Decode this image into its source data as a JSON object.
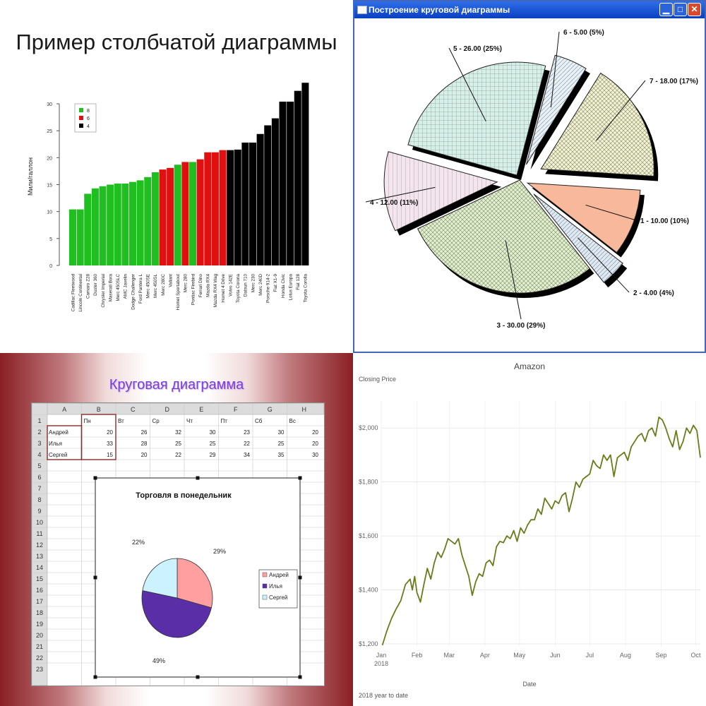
{
  "panels": {
    "bar": {
      "title": "Пример столбчатой диаграммы"
    },
    "pie_window": {
      "window_title": "Построение круговой диаграммы"
    },
    "excel": {
      "slide_title": "Круговая диаграмма"
    },
    "line": {
      "title": "Amazon"
    }
  },
  "colors": {
    "green": "#1fbf1f",
    "red": "#e01010",
    "black": "#000000",
    "olive": "#6b7a1a",
    "winblue": "#0a3fc2"
  },
  "chart_data": [
    {
      "type": "bar",
      "title": "Пример столбчатой диаграммы",
      "ylabel": "Мили/галлон",
      "xlabel": "",
      "ylim": [
        0,
        35
      ],
      "yticks": [
        0,
        5,
        10,
        15,
        20,
        25,
        30
      ],
      "categories": [
        "Cadillac Fleetwood",
        "Lincoln Continental",
        "Camaro Z28",
        "Duster 360",
        "Chrysler Imperial",
        "Maserati Bora",
        "Merc 450SLC",
        "AMC Javelin",
        "Dodge Challenger",
        "Ford Pantera L",
        "Merc 450SE",
        "Merc 450SL",
        "Merc 280C",
        "Valiant",
        "Hornet Sportabout",
        "Merc 280",
        "Pontiac Firebird",
        "Ferrari Dino",
        "Mazda RX4",
        "Mazda RX4 Wag",
        "Hornet 4 Drive",
        "Volvo 142E",
        "Toyota Corona",
        "Datsun 710",
        "Merc 230",
        "Merc 240D",
        "Porsche 914-2",
        "Fiat X1-9",
        "Honda Civic",
        "Lotus Europa",
        "Fiat 128",
        "Toyota Corolla"
      ],
      "values": [
        10.4,
        10.4,
        13.3,
        14.3,
        14.7,
        15.0,
        15.2,
        15.2,
        15.5,
        15.8,
        16.4,
        17.3,
        17.8,
        18.1,
        18.7,
        19.2,
        19.2,
        19.7,
        21.0,
        21.0,
        21.4,
        21.4,
        21.5,
        22.8,
        22.8,
        24.4,
        26.0,
        27.3,
        30.4,
        30.4,
        32.4,
        33.9
      ],
      "groups": [
        "8",
        "8",
        "8",
        "8",
        "8",
        "8",
        "8",
        "8",
        "8",
        "8",
        "8",
        "8",
        "6",
        "6",
        "8",
        "6",
        "8",
        "6",
        "6",
        "6",
        "6",
        "4",
        "4",
        "4",
        "4",
        "4",
        "4",
        "4",
        "4",
        "4",
        "4",
        "4"
      ],
      "legend": [
        {
          "name": "8",
          "color": "#1fbf1f"
        },
        {
          "name": "6",
          "color": "#e01010"
        },
        {
          "name": "4",
          "color": "#000000"
        }
      ],
      "legend_position": "top-left"
    },
    {
      "type": "pie",
      "title": "",
      "slices": [
        {
          "label": "1 - 10.00 (10%)",
          "value": 10,
          "color": "#f8b89c",
          "pattern": "solid"
        },
        {
          "label": "2 - 4.00 (4%)",
          "value": 4,
          "color": "#dfe8f5",
          "pattern": "diagonal"
        },
        {
          "label": "3 - 30.00 (29%)",
          "value": 30,
          "color": "#e4f0c8",
          "pattern": "crosshatch"
        },
        {
          "label": "4 - 12.00 (11%)",
          "value": 12,
          "color": "#f5e4ee",
          "pattern": "vertical"
        },
        {
          "label": "5 - 26.00 (25%)",
          "value": 26,
          "color": "#d6efe8",
          "pattern": "grid"
        },
        {
          "label": "6 - 5.00 (5%)",
          "value": 5,
          "color": "#e8f0fa",
          "pattern": "diagonal"
        },
        {
          "label": "7 - 18.00 (17%)",
          "value": 18,
          "color": "#f6f2cc",
          "pattern": "crosshatch"
        }
      ]
    },
    {
      "type": "table",
      "columns": [
        "A",
        "B",
        "C",
        "D",
        "E",
        "F",
        "G",
        "H"
      ],
      "header_row": [
        "",
        "Пн",
        "Вт",
        "Ср",
        "Чт",
        "Пт",
        "Сб",
        "Вс"
      ],
      "rows": [
        [
          "Андрей",
          "20",
          "26",
          "32",
          "30",
          "23",
          "30",
          "20"
        ],
        [
          "Илья",
          "33",
          "28",
          "25",
          "25",
          "22",
          "25",
          "20"
        ],
        [
          "Сергей",
          "15",
          "20",
          "22",
          "29",
          "34",
          "35",
          "30"
        ]
      ],
      "row_numbers": [
        "1",
        "2",
        "3",
        "4",
        "5",
        "6",
        "7",
        "8",
        "9",
        "10",
        "11",
        "12",
        "13",
        "14",
        "15",
        "16",
        "17",
        "18",
        "19",
        "20",
        "21",
        "22",
        "23"
      ]
    },
    {
      "type": "pie",
      "title": "Торговля в понедельник",
      "slices": [
        {
          "name": "Андрей",
          "value": 29,
          "label": "29%",
          "color": "#ff9f9f"
        },
        {
          "name": "Илья",
          "value": 49,
          "label": "49%",
          "color": "#5a2ea6"
        },
        {
          "name": "Сергей",
          "value": 22,
          "label": "22%",
          "color": "#ccf2ff"
        }
      ],
      "legend_position": "right"
    },
    {
      "type": "line",
      "title": "Amazon",
      "ylabel": "Closing Price",
      "xlabel": "Date",
      "note": "2018 year to date",
      "ylim": [
        1200,
        2100
      ],
      "yticks": [
        1200,
        1400,
        1600,
        1800,
        2000
      ],
      "ytick_labels": [
        "$1,200",
        "$1,400",
        "$1,600",
        "$1,800",
        "$2,000"
      ],
      "xlim": [
        0,
        277
      ],
      "xticks": [
        0,
        31,
        59,
        90,
        120,
        151,
        181,
        212,
        243,
        273
      ],
      "xtick_labels": [
        "Jan",
        "Feb",
        "Mar",
        "Apr",
        "May",
        "Jun",
        "Jul",
        "Aug",
        "Sep",
        "Oct"
      ],
      "xtick_year": "2018",
      "color": "#6b7a1a",
      "x": [
        1,
        5,
        9,
        13,
        17,
        21,
        25,
        27,
        29,
        31,
        34,
        37,
        40,
        43,
        46,
        49,
        52,
        55,
        58,
        61,
        64,
        67,
        70,
        73,
        76,
        79,
        82,
        85,
        88,
        91,
        94,
        97,
        100,
        103,
        106,
        109,
        112,
        115,
        118,
        121,
        124,
        127,
        130,
        133,
        136,
        139,
        142,
        145,
        148,
        151,
        154,
        157,
        160,
        163,
        166,
        169,
        172,
        175,
        178,
        181,
        184,
        187,
        190,
        193,
        196,
        199,
        202,
        205,
        208,
        211,
        214,
        217,
        220,
        223,
        226,
        229,
        232,
        235,
        238,
        241,
        244,
        247,
        250,
        253,
        256,
        259,
        262,
        265,
        268,
        271,
        274,
        277
      ],
      "y": [
        1195,
        1250,
        1295,
        1330,
        1360,
        1420,
        1440,
        1400,
        1450,
        1390,
        1355,
        1420,
        1480,
        1440,
        1500,
        1540,
        1520,
        1550,
        1590,
        1580,
        1570,
        1590,
        1530,
        1490,
        1450,
        1380,
        1430,
        1460,
        1450,
        1500,
        1510,
        1490,
        1560,
        1580,
        1575,
        1600,
        1590,
        1620,
        1580,
        1630,
        1610,
        1640,
        1660,
        1660,
        1700,
        1680,
        1740,
        1720,
        1700,
        1730,
        1720,
        1750,
        1760,
        1690,
        1740,
        1800,
        1780,
        1810,
        1820,
        1830,
        1880,
        1860,
        1850,
        1900,
        1880,
        1900,
        1820,
        1890,
        1900,
        1910,
        1880,
        1930,
        1950,
        1970,
        1980,
        1950,
        1990,
        2000,
        1970,
        2040,
        2030,
        2000,
        1960,
        1930,
        1990,
        1920,
        1950,
        2000,
        1980,
        2010,
        1990,
        1890
      ]
    }
  ]
}
